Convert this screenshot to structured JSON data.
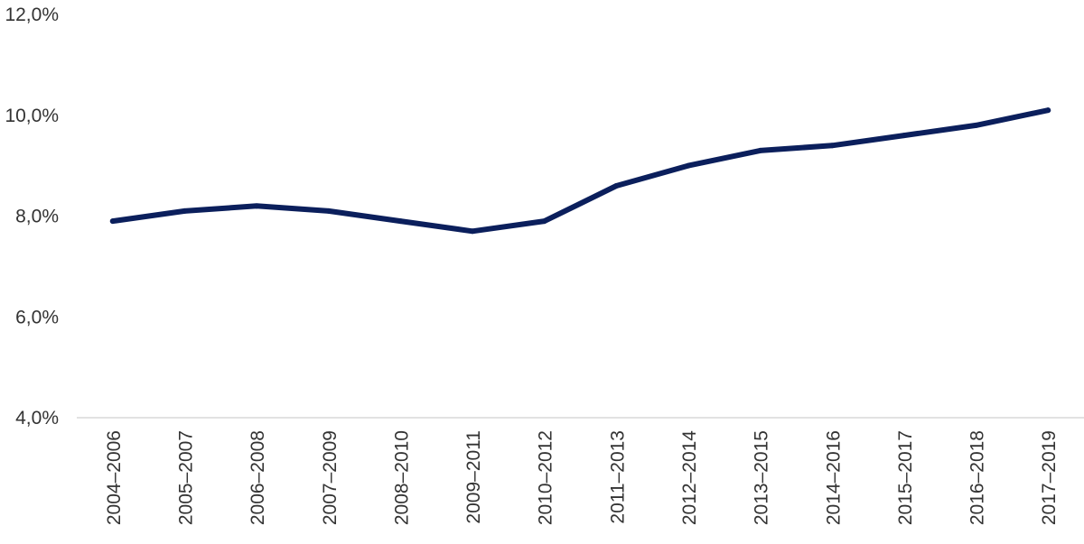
{
  "chart_data": {
    "type": "line",
    "categories": [
      "2004–2006",
      "2005–2007",
      "2006–2008",
      "2007–2009",
      "2008–2010",
      "2009–2011",
      "2010–2012",
      "2011–2013",
      "2012–2014",
      "2013–2015",
      "2014–2016",
      "2015–2017",
      "2016–2018",
      "2017–2019"
    ],
    "series": [
      {
        "values": [
          7.9,
          8.1,
          8.2,
          8.1,
          7.9,
          7.7,
          7.9,
          8.6,
          9.0,
          9.3,
          9.4,
          9.6,
          9.8,
          10.1
        ],
        "color": "#0b1f5c"
      }
    ],
    "y_ticks": [
      "4,0%",
      "6,0%",
      "8,0%",
      "10,0%",
      "12,0%"
    ],
    "ylim": [
      4,
      12
    ],
    "grid": false,
    "legend": "none"
  }
}
